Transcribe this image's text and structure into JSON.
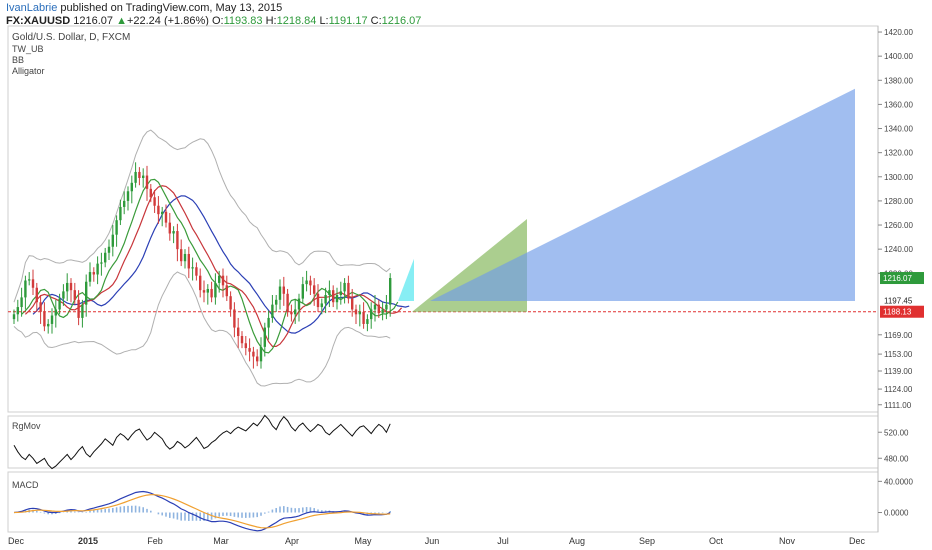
{
  "header": {
    "author": "IvanLabrie",
    "text": " published on TradingView.com, May 13, 2015"
  },
  "symbol_bar": {
    "symbol": "FX:XAUUSD",
    "price": "1216.07",
    "arrow": "▲",
    "change": "+22.24 (+1.86%)",
    "o_label": "O:",
    "o": "1193.83",
    "h_label": "H:",
    "h": "1218.84",
    "l_label": "L:",
    "l": "1191.17",
    "c_label": "C:",
    "c": "1216.07"
  },
  "indicators": {
    "title": "Gold/U.S. Dollar, D, FXCM",
    "items": [
      "TW_UB",
      "BB",
      "Alligator"
    ]
  },
  "colors": {
    "bull": "#2e9a3b",
    "bear": "#d23b3b",
    "bb": "#b0b0b0",
    "jaw": "#2b3fb5",
    "teeth": "#c8363b",
    "lips": "#3a9b3a",
    "cyan_proj": "#5fe8f0",
    "green_proj": "#8fbd6a",
    "blue_proj": "#6f9be8",
    "current_price_tag": "#2e9a3b",
    "ref_price_tag": "#e03030",
    "macd_line": "#2b3fb5",
    "signal_line": "#f0a030",
    "histogram": "#8fb4e0"
  },
  "chart_data": [
    {
      "type": "candlestick",
      "title": "Gold/U.S. Dollar, D, FXCM",
      "ylim": [
        1105,
        1425
      ],
      "y_ticks": [
        "1420.00",
        "1400.00",
        "1380.00",
        "1360.00",
        "1340.00",
        "1320.00",
        "1300.00",
        "1280.00",
        "1260.00",
        "1240.00",
        "1220.00",
        "1216.07",
        "1197.45",
        "1188.13",
        "1169.00",
        "1153.00",
        "1139.00",
        "1124.00",
        "1111.00"
      ],
      "x_ticks": [
        "Dec",
        "2015",
        "Feb",
        "Mar",
        "Apr",
        "May",
        "Jun",
        "Jul",
        "Aug",
        "Sep",
        "Oct",
        "Nov",
        "Dec"
      ],
      "price_labels": {
        "current": "1216.07",
        "previous": "1197.45",
        "reference": "1188.13"
      },
      "reference_level": 1188.13,
      "closes": [
        1186,
        1192,
        1200,
        1214,
        1215,
        1208,
        1196,
        1188,
        1176,
        1178,
        1185,
        1190,
        1199,
        1205,
        1212,
        1206,
        1198,
        1183,
        1194,
        1213,
        1221,
        1219,
        1228,
        1229,
        1237,
        1242,
        1252,
        1264,
        1275,
        1280,
        1288,
        1295,
        1304,
        1299,
        1301,
        1290,
        1283,
        1276,
        1269,
        1271,
        1262,
        1253,
        1255,
        1240,
        1230,
        1236,
        1224,
        1225,
        1218,
        1206,
        1204,
        1207,
        1200,
        1212,
        1218,
        1210,
        1201,
        1190,
        1175,
        1168,
        1162,
        1158,
        1155,
        1151,
        1147,
        1159,
        1175,
        1183,
        1194,
        1198,
        1209,
        1203,
        1188,
        1186,
        1190,
        1199,
        1211,
        1214,
        1210,
        1203,
        1192,
        1195,
        1202,
        1206,
        1196,
        1202,
        1205,
        1212,
        1199,
        1190,
        1186,
        1188,
        1178,
        1182,
        1190,
        1194,
        1187,
        1190,
        1194,
        1216.07
      ],
      "bollinger": {
        "upper_peak": 1340,
        "lower_trough": 1148
      },
      "alligator": [
        "jaw",
        "teeth",
        "lips"
      ],
      "projections": [
        {
          "name": "cyan",
          "x_end": "late May",
          "y_top": 1232,
          "y_base": 1197
        },
        {
          "name": "green",
          "x_end": "early Jul",
          "y_top": 1265,
          "y_base": 1188
        },
        {
          "name": "blue",
          "x_end": "Dec",
          "y_top": 1373,
          "y_base": 1197
        }
      ]
    },
    {
      "type": "line",
      "title": "RgMov",
      "ylim": [
        465,
        545
      ],
      "y_ticks": [
        "520.00",
        "480.00"
      ],
      "values": [
        500,
        490,
        482,
        478,
        486,
        480,
        472,
        476,
        480,
        470,
        464,
        468,
        474,
        480,
        486,
        478,
        484,
        492,
        498,
        487,
        482,
        490,
        496,
        502,
        510,
        505,
        500,
        512,
        518,
        514,
        508,
        516,
        522,
        525,
        516,
        508,
        512,
        520,
        515,
        510,
        500,
        494,
        498,
        506,
        502,
        496,
        500,
        506,
        512,
        504,
        495,
        498,
        504,
        508,
        514,
        519,
        522,
        518,
        524,
        528,
        525,
        522,
        528,
        534,
        530,
        537,
        546,
        540,
        530,
        524,
        536,
        544,
        538,
        528,
        522,
        530,
        534,
        527,
        521,
        526,
        532,
        529,
        520,
        516,
        522,
        527,
        532,
        526,
        520,
        514,
        522,
        528,
        530,
        524,
        518,
        526,
        532,
        528,
        520,
        533
      ]
    },
    {
      "type": "line",
      "title": "MACD",
      "ylim": [
        -25,
        52
      ],
      "y_ticks": [
        "40.0000",
        "0.0000"
      ],
      "series": [
        "macd",
        "signal",
        "histogram"
      ]
    }
  ]
}
